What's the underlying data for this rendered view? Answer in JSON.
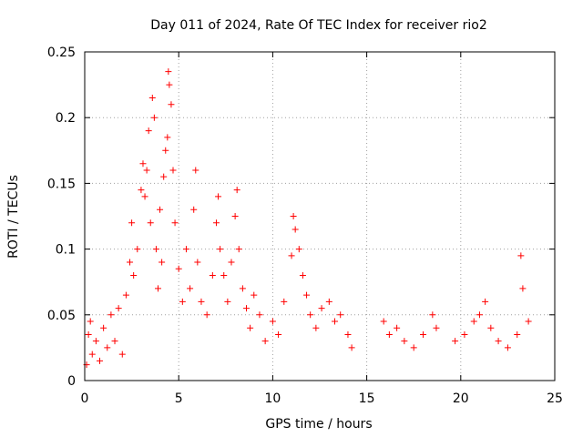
{
  "chart_data": {
    "type": "scatter",
    "title": "Day 011 of 2024, Rate Of TEC Index for receiver rio2",
    "xlabel": "GPS time / hours",
    "ylabel": "ROTI / TECUs",
    "xlim": [
      0,
      25
    ],
    "ylim": [
      0,
      0.25
    ],
    "xticks": [
      0,
      5,
      10,
      15,
      20,
      25
    ],
    "yticks": [
      0,
      0.05,
      0.1,
      0.15,
      0.2,
      0.25
    ],
    "xtick_labels": [
      "0",
      "5",
      "10",
      "15",
      "20",
      "25"
    ],
    "ytick_labels": [
      "0",
      "0.05",
      "0.1",
      "0.15",
      "0.2",
      "0.25"
    ],
    "grid": true,
    "legend": "none",
    "marker": "+",
    "marker_color": "#ff0000",
    "series": [
      {
        "name": "ROTI",
        "points": [
          [
            0.1,
            0.012
          ],
          [
            0.2,
            0.035
          ],
          [
            0.3,
            0.045
          ],
          [
            0.4,
            0.02
          ],
          [
            0.6,
            0.03
          ],
          [
            0.8,
            0.015
          ],
          [
            1.0,
            0.04
          ],
          [
            1.2,
            0.025
          ],
          [
            1.4,
            0.05
          ],
          [
            1.6,
            0.03
          ],
          [
            1.8,
            0.055
          ],
          [
            2.0,
            0.02
          ],
          [
            2.2,
            0.065
          ],
          [
            2.4,
            0.09
          ],
          [
            2.5,
            0.12
          ],
          [
            2.6,
            0.08
          ],
          [
            2.8,
            0.1
          ],
          [
            3.0,
            0.145
          ],
          [
            3.1,
            0.165
          ],
          [
            3.2,
            0.14
          ],
          [
            3.3,
            0.16
          ],
          [
            3.4,
            0.19
          ],
          [
            3.5,
            0.12
          ],
          [
            3.6,
            0.215
          ],
          [
            3.7,
            0.2
          ],
          [
            3.8,
            0.1
          ],
          [
            3.9,
            0.07
          ],
          [
            4.0,
            0.13
          ],
          [
            4.1,
            0.09
          ],
          [
            4.2,
            0.155
          ],
          [
            4.3,
            0.175
          ],
          [
            4.4,
            0.185
          ],
          [
            4.45,
            0.235
          ],
          [
            4.5,
            0.225
          ],
          [
            4.6,
            0.21
          ],
          [
            4.7,
            0.16
          ],
          [
            4.8,
            0.12
          ],
          [
            5.0,
            0.085
          ],
          [
            5.2,
            0.06
          ],
          [
            5.4,
            0.1
          ],
          [
            5.6,
            0.07
          ],
          [
            5.8,
            0.13
          ],
          [
            5.9,
            0.16
          ],
          [
            6.0,
            0.09
          ],
          [
            6.2,
            0.06
          ],
          [
            6.5,
            0.05
          ],
          [
            6.8,
            0.08
          ],
          [
            7.0,
            0.12
          ],
          [
            7.1,
            0.14
          ],
          [
            7.2,
            0.1
          ],
          [
            7.4,
            0.08
          ],
          [
            7.6,
            0.06
          ],
          [
            7.8,
            0.09
          ],
          [
            8.0,
            0.125
          ],
          [
            8.1,
            0.145
          ],
          [
            8.2,
            0.1
          ],
          [
            8.4,
            0.07
          ],
          [
            8.6,
            0.055
          ],
          [
            8.8,
            0.04
          ],
          [
            9.0,
            0.065
          ],
          [
            9.3,
            0.05
          ],
          [
            9.6,
            0.03
          ],
          [
            10.0,
            0.045
          ],
          [
            10.3,
            0.035
          ],
          [
            10.6,
            0.06
          ],
          [
            11.0,
            0.095
          ],
          [
            11.1,
            0.125
          ],
          [
            11.2,
            0.115
          ],
          [
            11.4,
            0.1
          ],
          [
            11.6,
            0.08
          ],
          [
            11.8,
            0.065
          ],
          [
            12.0,
            0.05
          ],
          [
            12.3,
            0.04
          ],
          [
            12.6,
            0.055
          ],
          [
            13.0,
            0.06
          ],
          [
            13.3,
            0.045
          ],
          [
            13.6,
            0.05
          ],
          [
            14.0,
            0.035
          ],
          [
            14.2,
            0.025
          ],
          [
            15.9,
            0.045
          ],
          [
            16.2,
            0.035
          ],
          [
            16.6,
            0.04
          ],
          [
            17.0,
            0.03
          ],
          [
            17.5,
            0.025
          ],
          [
            18.0,
            0.035
          ],
          [
            18.5,
            0.05
          ],
          [
            18.7,
            0.04
          ],
          [
            19.7,
            0.03
          ],
          [
            20.2,
            0.035
          ],
          [
            20.7,
            0.045
          ],
          [
            21.0,
            0.05
          ],
          [
            21.3,
            0.06
          ],
          [
            21.6,
            0.04
          ],
          [
            22.0,
            0.03
          ],
          [
            22.5,
            0.025
          ],
          [
            23.0,
            0.035
          ],
          [
            23.2,
            0.095
          ],
          [
            23.3,
            0.07
          ],
          [
            23.6,
            0.045
          ]
        ]
      }
    ]
  }
}
